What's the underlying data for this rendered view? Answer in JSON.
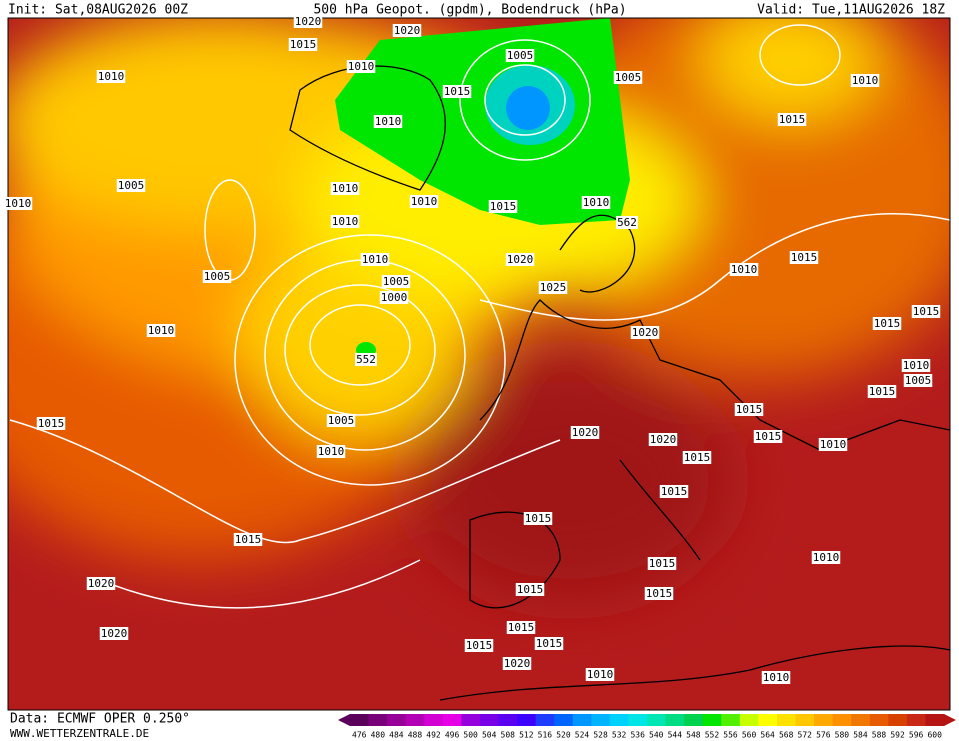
{
  "header": {
    "init": "Init: Sat,08AUG2026 00Z",
    "title": "500 hPa Geopot. (gpdm), Bodendruck (hPa)",
    "valid": "Valid: Tue,11AUG2026 18Z"
  },
  "labels": [
    "1020",
    "1020",
    "1015",
    "1010",
    "1005",
    "1005",
    "1010",
    "1010",
    "1015",
    "1010",
    "1015",
    "1005",
    "1010",
    "1010",
    "1015",
    "1010",
    "562",
    "1010",
    "1010",
    "1010",
    "1020",
    "1015",
    "1010",
    "1005",
    "1005",
    "1025",
    "1000",
    "1010",
    "1020",
    "1015",
    "1015",
    "552",
    "1010",
    "1005",
    "1015",
    "1015",
    "1015",
    "1005",
    "1020",
    "1020",
    "1015",
    "1010",
    "1010",
    "1015",
    "1015",
    "1015",
    "1015",
    "1010",
    "1015",
    "1020",
    "1015",
    "1015",
    "1015",
    "1020",
    "1015",
    "1015",
    "1020",
    "1010",
    "1010"
  ],
  "colorbar": {
    "labels": [
      476,
      480,
      484,
      488,
      492,
      496,
      500,
      504,
      508,
      512,
      516,
      520,
      524,
      528,
      532,
      536,
      540,
      544,
      548,
      552,
      556,
      560,
      564,
      568,
      572,
      576,
      580,
      584,
      588,
      592,
      596,
      600
    ],
    "colors": [
      "#5a005a",
      "#780078",
      "#960096",
      "#b400b4",
      "#d200d2",
      "#e600e6",
      "#9600dc",
      "#7800e6",
      "#5a00f0",
      "#3c00ff",
      "#1e3cff",
      "#0064ff",
      "#0096ff",
      "#00b4ff",
      "#00d2ff",
      "#00e6e6",
      "#00e6b4",
      "#00dc82",
      "#00d250",
      "#00e600",
      "#50f000",
      "#c8ff00",
      "#ffff00",
      "#ffe100",
      "#ffc800",
      "#ffaa00",
      "#ff9100",
      "#f07800",
      "#e65a00",
      "#d74100",
      "#c82814",
      "#b41414"
    ]
  },
  "footer": {
    "source": "Data: ECMWF OPER 0.250°",
    "site": "WWW.WETTERZENTRALE.DE"
  }
}
